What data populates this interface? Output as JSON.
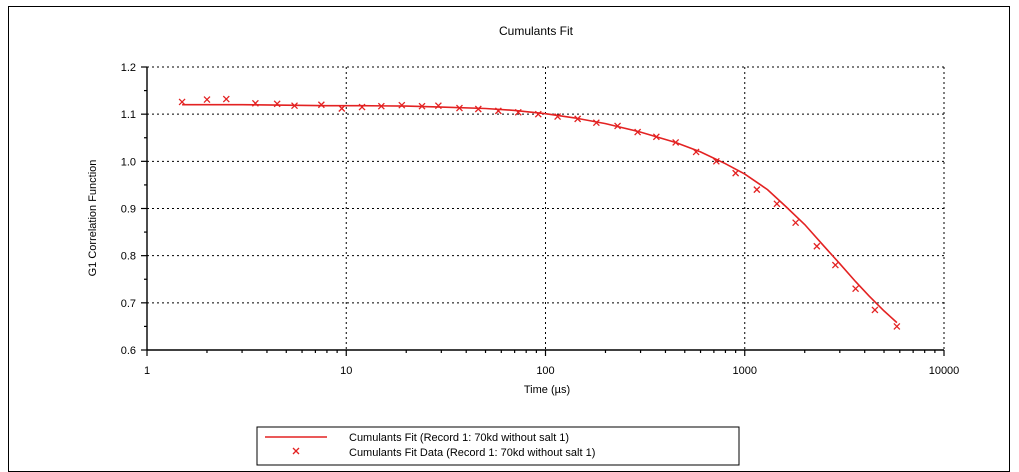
{
  "chart_data": {
    "type": "scatter",
    "title": "Cumulants Fit",
    "xlabel": "Time (µs)",
    "ylabel": "G1 Correlation Function",
    "xscale": "log",
    "xlim": [
      1,
      10000
    ],
    "ylim": [
      0.6,
      1.2
    ],
    "x_ticks": [
      "1",
      "10",
      "100",
      "1000",
      "10000"
    ],
    "y_ticks": [
      "0.6",
      "0.7",
      "0.8",
      "0.9",
      "1.0",
      "1.1",
      "1.2"
    ],
    "grid": true,
    "legend_position": "bottom",
    "series": [
      {
        "name": "Cumulants Fit (Record 1: 70kd without salt 1)",
        "kind": "line",
        "color": "#e32222",
        "x": [
          1.5,
          2,
          3,
          5,
          8,
          12,
          20,
          30,
          50,
          70,
          100,
          140,
          200,
          300,
          450,
          600,
          800,
          1000,
          1300,
          1600,
          2000,
          2500,
          3000,
          3600,
          4200,
          5000,
          5800
        ],
        "y": [
          1.12,
          1.12,
          1.12,
          1.119,
          1.118,
          1.118,
          1.117,
          1.115,
          1.112,
          1.108,
          1.101,
          1.092,
          1.08,
          1.062,
          1.04,
          1.02,
          0.995,
          0.973,
          0.94,
          0.905,
          0.866,
          0.82,
          0.783,
          0.745,
          0.715,
          0.683,
          0.658
        ]
      },
      {
        "name": "Cumulants Fit Data (Record 1: 70kd without salt 1)",
        "kind": "marker",
        "color": "#e32222",
        "x": [
          1.5,
          2,
          2.5,
          3.5,
          4.5,
          5.5,
          7.5,
          9.5,
          12,
          15,
          19,
          24,
          29,
          37,
          46,
          58,
          73,
          92,
          115,
          145,
          180,
          230,
          290,
          360,
          450,
          570,
          720,
          900,
          1150,
          1450,
          1800,
          2300,
          2850,
          3600,
          4500,
          5800
        ],
        "y": [
          1.126,
          1.131,
          1.132,
          1.123,
          1.122,
          1.118,
          1.12,
          1.112,
          1.115,
          1.117,
          1.119,
          1.117,
          1.118,
          1.113,
          1.111,
          1.107,
          1.104,
          1.1,
          1.095,
          1.09,
          1.082,
          1.075,
          1.062,
          1.052,
          1.04,
          1.02,
          1.0,
          0.975,
          0.94,
          0.91,
          0.87,
          0.82,
          0.78,
          0.73,
          0.685,
          0.65
        ]
      }
    ]
  }
}
